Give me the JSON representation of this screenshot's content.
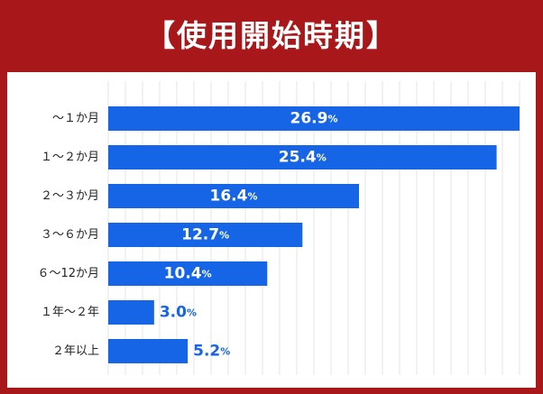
{
  "title": "【使用開始時期】",
  "colors": {
    "header_bg": "#a8181a",
    "bar": "#1565e6",
    "label_inside": "#ffffff",
    "label_outside": "#1565e6",
    "grid": "#e6e6e6"
  },
  "chart_data": {
    "type": "bar",
    "orientation": "horizontal",
    "title": "【使用開始時期】",
    "categories": [
      "～１か月",
      "１～２か月",
      "２～３か月",
      "３～６か月",
      "６～12か月",
      "１年～２年",
      "２年以上"
    ],
    "values": [
      26.9,
      25.4,
      16.4,
      12.7,
      10.4,
      3.0,
      5.2
    ],
    "value_labels": [
      "26.9",
      "25.4",
      "16.4",
      "12.7",
      "10.4",
      "3.0",
      "5.2"
    ],
    "unit": "%",
    "xlim": [
      0,
      26.9
    ],
    "grid": true,
    "legend": "none"
  }
}
